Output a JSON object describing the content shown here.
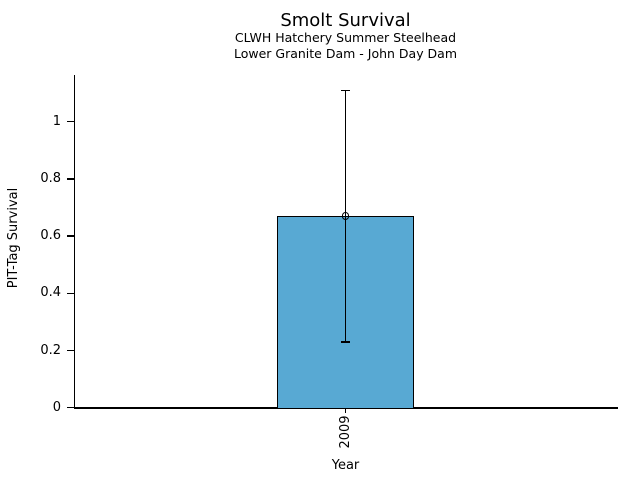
{
  "figure": {
    "title": "Smolt Survival",
    "subtitle_line1": "CLWH Hatchery Summer Steelhead",
    "subtitle_line2": "Lower Granite Dam - John Day Dam"
  },
  "chart_data": {
    "type": "bar",
    "title": "Smolt Survival",
    "subtitle": [
      "CLWH Hatchery Summer Steelhead",
      "Lower Granite Dam - John Day Dam"
    ],
    "categories": [
      "2009"
    ],
    "values": [
      0.67
    ],
    "error_low": [
      0.23
    ],
    "error_high": [
      1.11
    ],
    "xlabel": "Year",
    "ylabel": "PIT-Tag Survival",
    "ylim": [
      0,
      1.165
    ],
    "yticks": [
      0,
      0.2,
      0.4,
      0.6,
      0.8,
      1
    ],
    "ytick_labels": [
      "0",
      "0.2",
      "0.4",
      "0.6",
      "0.8",
      "1"
    ],
    "xtick_rotation": 90,
    "bar_color": "#58A9D3",
    "bar_edge_color": "#000000",
    "errorbar_color": "#000000",
    "marker": "open-circle",
    "grid": false,
    "legend": false
  }
}
